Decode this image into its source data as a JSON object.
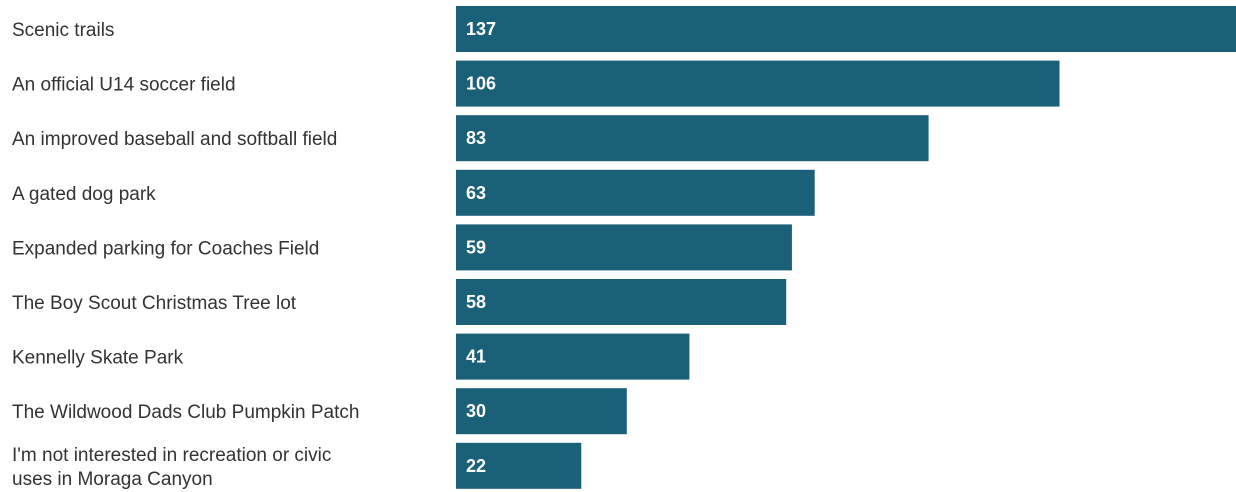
{
  "chart_data": {
    "type": "bar",
    "orientation": "horizontal",
    "title": "",
    "xlabel": "",
    "ylabel": "",
    "categories": [
      "Scenic trails",
      "An official U14 soccer field",
      "An improved baseball and softball field",
      "A gated dog park",
      "Expanded parking for Coaches Field",
      "The Boy Scout Christmas Tree lot",
      "Kennelly Skate Park",
      "The Wildwood Dads Club Pumpkin Patch",
      "I'm not interested in recreation or civic uses in Moraga Canyon"
    ],
    "values": [
      137,
      106,
      83,
      63,
      59,
      58,
      41,
      30,
      22
    ],
    "xlim": [
      0,
      137
    ],
    "data_labels": "inside-left",
    "grid": false,
    "legend": "none",
    "colors": {
      "bar": "#1a6079",
      "value_text": "#ffffff",
      "category_text": "#333333"
    }
  }
}
